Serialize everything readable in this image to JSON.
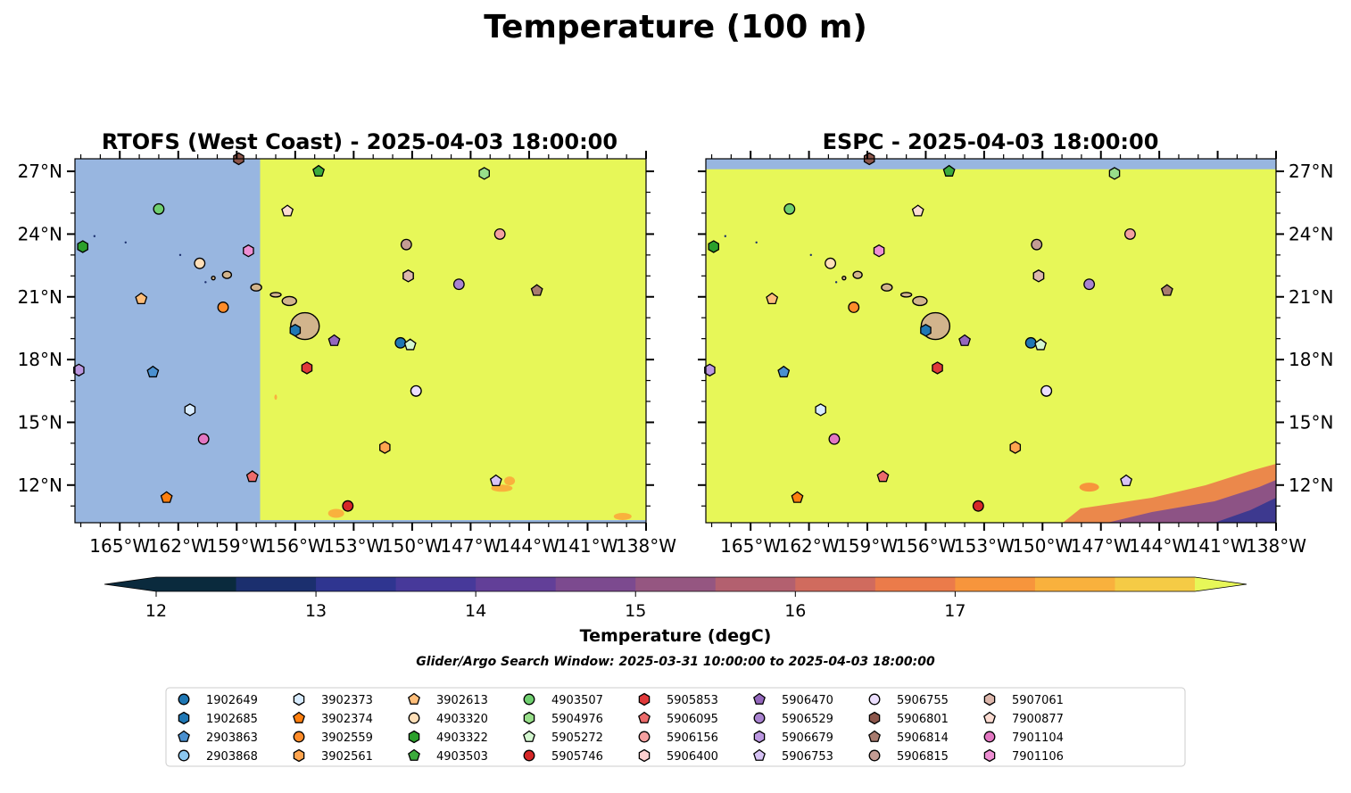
{
  "figure": {
    "title": "Temperature (100 m)"
  },
  "maps": [
    {
      "title": "RTOFS (West Coast) - 2025-04-03 18:00:00",
      "data_boundary_lon": -157.8
    },
    {
      "title": "ESPC - 2025-04-03 18:00:00",
      "data_top_lat": 27.1
    }
  ],
  "axes": {
    "lon_ticks": [
      -165,
      -162,
      -159,
      -156,
      -153,
      -150,
      -147,
      -144,
      -141,
      -138
    ],
    "lon_tick_labels": [
      "165°W",
      "162°W",
      "159°W",
      "156°W",
      "153°W",
      "150°W",
      "147°W",
      "144°W",
      "141°W",
      "138°W"
    ],
    "lat_ticks": [
      12,
      15,
      18,
      21,
      24,
      27
    ],
    "lat_tick_labels": [
      "12°N",
      "15°N",
      "18°N",
      "21°N",
      "24°N",
      "27°N"
    ],
    "lon_range": [
      -167.3,
      -138
    ],
    "lat_range": [
      10.2,
      27.6
    ]
  },
  "colorbar": {
    "label": "Temperature (degC)",
    "ticks": [
      "12",
      "13",
      "14",
      "15",
      "16",
      "17"
    ],
    "min": 11.75,
    "max": 17.75,
    "step": 0.5,
    "colors": [
      "#0a2a3d",
      "#1b2f6e",
      "#2f3590",
      "#47399a",
      "#623f98",
      "#7c4a8f",
      "#955681",
      "#b3606f",
      "#d06b5e",
      "#eb7b4a",
      "#f7953c",
      "#f9b13d",
      "#f5cb45",
      "#e7f758"
    ],
    "land_color": "#d2b48c",
    "no_data_color": "#98b6e0",
    "warm_color": "#e7f758"
  },
  "search_window": "Glider/Argo Search Window: 2025-03-31 10:00:00 to 2025-04-03 18:00:00",
  "legend": {
    "items": [
      {
        "label": "1902649",
        "shape": "circle",
        "color": "#1f77b4"
      },
      {
        "label": "1902685",
        "shape": "hexagon",
        "color": "#1f77b4"
      },
      {
        "label": "2903863",
        "shape": "pentagon",
        "color": "#4a90d0"
      },
      {
        "label": "2903868",
        "shape": "circle",
        "color": "#8cc8f0"
      },
      {
        "label": "3902373",
        "shape": "hexagon",
        "color": "#d8ecff"
      },
      {
        "label": "3902374",
        "shape": "pentagon",
        "color": "#ff7f0e"
      },
      {
        "label": "3902559",
        "shape": "circle",
        "color": "#ff8c2a"
      },
      {
        "label": "3902561",
        "shape": "hexagon",
        "color": "#ffa54f"
      },
      {
        "label": "3902613",
        "shape": "pentagon",
        "color": "#ffbe7a"
      },
      {
        "label": "4903320",
        "shape": "circle",
        "color": "#ffdfb8"
      },
      {
        "label": "4903322",
        "shape": "hexagon",
        "color": "#2ca02c"
      },
      {
        "label": "4903503",
        "shape": "pentagon",
        "color": "#3cab3c"
      },
      {
        "label": "4903507",
        "shape": "circle",
        "color": "#6fcf6f"
      },
      {
        "label": "5904976",
        "shape": "hexagon",
        "color": "#98df8a"
      },
      {
        "label": "5905272",
        "shape": "pentagon",
        "color": "#d4f7d0"
      },
      {
        "label": "5905746",
        "shape": "circle",
        "color": "#d62728"
      },
      {
        "label": "5905853",
        "shape": "hexagon",
        "color": "#e0393a"
      },
      {
        "label": "5906095",
        "shape": "pentagon",
        "color": "#ec6b6b"
      },
      {
        "label": "5906156",
        "shape": "circle",
        "color": "#f4a0a0"
      },
      {
        "label": "5906400",
        "shape": "hexagon",
        "color": "#fccfcf"
      },
      {
        "label": "5906470",
        "shape": "pentagon",
        "color": "#9467bd"
      },
      {
        "label": "5906529",
        "shape": "circle",
        "color": "#a983d0"
      },
      {
        "label": "5906679",
        "shape": "hexagon",
        "color": "#bb97e0"
      },
      {
        "label": "5906753",
        "shape": "pentagon",
        "color": "#d7c3f5"
      },
      {
        "label": "5906755",
        "shape": "circle",
        "color": "#ecdfff"
      },
      {
        "label": "5906801",
        "shape": "hexagon",
        "color": "#8c564b"
      },
      {
        "label": "5906814",
        "shape": "pentagon",
        "color": "#a87b6f"
      },
      {
        "label": "5906815",
        "shape": "circle",
        "color": "#c49c94"
      },
      {
        "label": "5907061",
        "shape": "hexagon",
        "color": "#ddb7ac"
      },
      {
        "label": "7900877",
        "shape": "pentagon",
        "color": "#fcdcd2"
      },
      {
        "label": "7901104",
        "shape": "circle",
        "color": "#e377c2"
      },
      {
        "label": "7901106",
        "shape": "hexagon",
        "color": "#ee8fd3"
      }
    ]
  },
  "platforms": [
    {
      "id": "1902649",
      "lon": -150.6,
      "lat": 18.8
    },
    {
      "id": "1902685",
      "lon": -156.0,
      "lat": 19.4
    },
    {
      "id": "2903863",
      "lon": -163.3,
      "lat": 17.4
    },
    {
      "id": "2903868",
      "lon": -149.8,
      "lat": 16.5
    },
    {
      "id": "3902373",
      "lon": -161.4,
      "lat": 15.6
    },
    {
      "id": "3902374",
      "lon": -162.6,
      "lat": 11.4
    },
    {
      "id": "3902559",
      "lon": -159.7,
      "lat": 20.5
    },
    {
      "id": "3902561",
      "lon": -151.4,
      "lat": 13.8
    },
    {
      "id": "3902613",
      "lon": -163.9,
      "lat": 20.9
    },
    {
      "id": "4903320",
      "lon": -160.9,
      "lat": 22.6
    },
    {
      "id": "4903322",
      "lon": -166.9,
      "lat": 23.4
    },
    {
      "id": "4903503",
      "lon": -154.8,
      "lat": 27.0
    },
    {
      "id": "4903507",
      "lon": -163.0,
      "lat": 25.2
    },
    {
      "id": "5904976",
      "lon": -146.3,
      "lat": 26.9
    },
    {
      "id": "5905272",
      "lon": -150.1,
      "lat": 18.7
    },
    {
      "id": "5905746",
      "lon": -153.3,
      "lat": 11.0
    },
    {
      "id": "5905853",
      "lon": -155.4,
      "lat": 17.6
    },
    {
      "id": "5906095",
      "lon": -158.2,
      "lat": 12.4
    },
    {
      "id": "5906156",
      "lon": -145.5,
      "lat": 24.0
    },
    {
      "id": "5906400",
      "lon": -150.2,
      "lat": 22.0
    },
    {
      "id": "5906470",
      "lon": -154.0,
      "lat": 18.9
    },
    {
      "id": "5906529",
      "lon": -147.6,
      "lat": 21.6
    },
    {
      "id": "5906679",
      "lon": -167.1,
      "lat": 17.5
    },
    {
      "id": "5906753",
      "lon": -145.7,
      "lat": 12.2
    },
    {
      "id": "5906755",
      "lon": -149.8,
      "lat": 16.5
    },
    {
      "id": "5906801",
      "lon": -158.9,
      "lat": 27.6
    },
    {
      "id": "5906814",
      "lon": -143.6,
      "lat": 21.3
    },
    {
      "id": "5906815",
      "lon": -150.3,
      "lat": 23.5
    },
    {
      "id": "5907061",
      "lon": -150.2,
      "lat": 22.0
    },
    {
      "id": "7900877",
      "lon": -156.4,
      "lat": 25.1
    },
    {
      "id": "7901104",
      "lon": -160.7,
      "lat": 14.2
    },
    {
      "id": "7901106",
      "lon": -158.4,
      "lat": 23.2
    }
  ]
}
